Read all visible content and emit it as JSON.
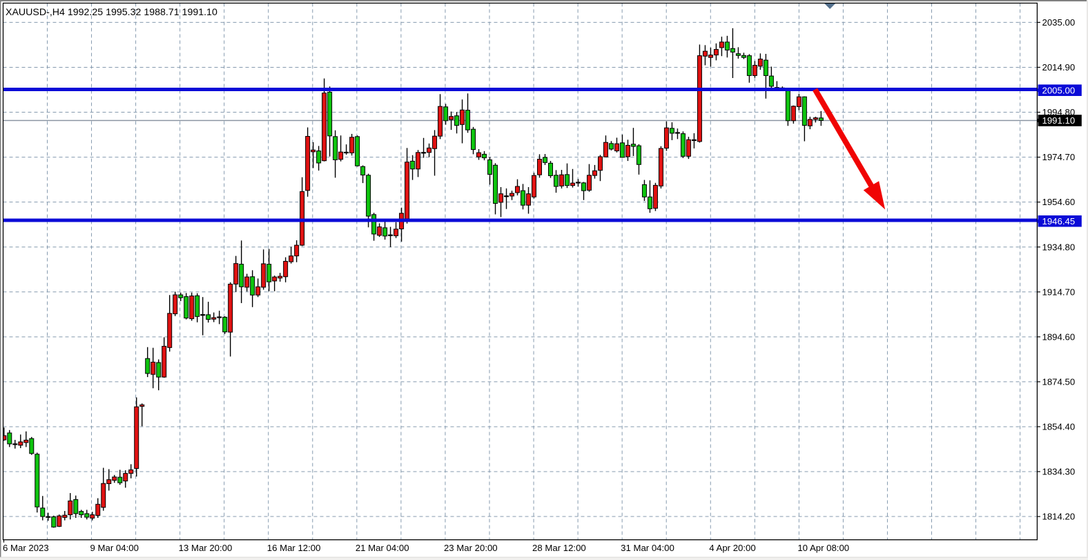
{
  "chart": {
    "title_text": "XAUUSD-,H4  1992.25 1995.32 1988.71 1991.10",
    "symbol": "XAUUSD-",
    "timeframe": "H4"
  },
  "chart_data": {
    "type": "candlestick",
    "title": "XAUUSD-,H4  1992.25 1995.32 1988.71 1991.10",
    "symbol": "XAUUSD-",
    "timeframe": "H4",
    "last_bar_ohlc": {
      "open": "1992.25",
      "high": "1995.32",
      "low": "1988.71",
      "close": "1991.10"
    },
    "legend_position": "none",
    "grid": "dashed",
    "colors": {
      "background": "#ffffff",
      "border": "#000000",
      "grid": "#8499ae",
      "bull_body": "#e11212",
      "bear_body": "#0fc40f",
      "outline": "#000000",
      "level_line": "#0b0bd7",
      "bid_line": "#8a95a2",
      "bid_tag_bg": "#000000",
      "tag_text": "#ffffff",
      "arrow": "#f00404",
      "shift_marker": "#54718e",
      "axis_text": "#000000",
      "window_trim": "#808080",
      "bottom_strip": "#f1f0ee"
    },
    "y_axis": {
      "side": "right",
      "tick_labels": [
        "2035.00",
        "2014.90",
        "1994.80",
        "1974.70",
        "1954.60",
        "1934.80",
        "1914.70",
        "1894.60",
        "1874.50",
        "1854.40",
        "1834.30",
        "1814.20"
      ],
      "top_price": 2035.0,
      "price_per_gridline": 20.1,
      "range_shown": [
        1805.5,
        2043.6
      ]
    },
    "x_axis": {
      "labels": [
        {
          "text": "6 Mar 2023",
          "grid_index": null
        },
        {
          "text": "9 Mar 04:00",
          "grid_index": 1
        },
        {
          "text": "13 Mar 20:00",
          "grid_index": 3
        },
        {
          "text": "16 Mar 12:00",
          "grid_index": 5
        },
        {
          "text": "21 Mar 04:00",
          "grid_index": 7
        },
        {
          "text": "23 Mar 20:00",
          "grid_index": 9
        },
        {
          "text": "28 Mar 12:00",
          "grid_index": 11
        },
        {
          "text": "31 Mar 04:00",
          "grid_index": 13
        },
        {
          "text": "4 Apr 20:00",
          "grid_index": 15
        },
        {
          "text": "10 Apr 08:00",
          "grid_index": 17
        }
      ],
      "gridline_count": 23,
      "bars_per_gridline": 8
    },
    "levels": [
      {
        "price": 2005.0,
        "label": "2005.00",
        "kind": "horizontal-line"
      },
      {
        "price": 1946.45,
        "label": "1946.45",
        "kind": "horizontal-line"
      }
    ],
    "bid": {
      "price": 1991.1,
      "label": "1991.10"
    },
    "arrow": {
      "from_bar": 146.9,
      "from_price": 2005.0,
      "to_bar": 159.6,
      "to_price": 1951.3
    },
    "shift_marker_bar": 149.6,
    "candles": [
      [
        1848.2,
        1853.7,
        1847.8,
        1850.1
      ],
      [
        1851.3,
        1852.6,
        1845.0,
        1846.4
      ],
      [
        1846.0,
        1848.2,
        1844.3,
        1846.5
      ],
      [
        1845.8,
        1850.6,
        1844.5,
        1847.3
      ],
      [
        1847.0,
        1852.0,
        1845.0,
        1848.1
      ],
      [
        1848.8,
        1849.5,
        1841.5,
        1842.1
      ],
      [
        1841.8,
        1842.5,
        1815.7,
        1818.2
      ],
      [
        1817.7,
        1823.1,
        1812.2,
        1813.9
      ],
      [
        1813.4,
        1815.6,
        1812.0,
        1814.0
      ],
      [
        1813.8,
        1814.3,
        1808.9,
        1809.2
      ],
      [
        1809.5,
        1814.8,
        1809.2,
        1814.2
      ],
      [
        1813.5,
        1816.4,
        1812.2,
        1814.5
      ],
      [
        1814.7,
        1824.4,
        1812.6,
        1820.9
      ],
      [
        1821.5,
        1823.3,
        1813.3,
        1815.2
      ],
      [
        1816.2,
        1816.9,
        1813.3,
        1814.7
      ],
      [
        1815.2,
        1816.9,
        1812.6,
        1813.6
      ],
      [
        1813.2,
        1816.0,
        1812.2,
        1814.7
      ],
      [
        1814.4,
        1822.1,
        1813.3,
        1819.4
      ],
      [
        1818.0,
        1835.7,
        1816.5,
        1828.7
      ],
      [
        1828.6,
        1835.1,
        1825.5,
        1830.4
      ],
      [
        1830.1,
        1832.5,
        1829.0,
        1831.6
      ],
      [
        1831.5,
        1834.8,
        1828.1,
        1829.0
      ],
      [
        1829.8,
        1834.6,
        1826.8,
        1833.2
      ],
      [
        1833.2,
        1837.3,
        1831.0,
        1834.8
      ],
      [
        1835.4,
        1867.2,
        1831.8,
        1863.0
      ],
      [
        1863.2,
        1864.5,
        1854.3,
        1863.9
      ],
      [
        1884.6,
        1889.7,
        1876.3,
        1877.9
      ],
      [
        1877.5,
        1889.4,
        1871.3,
        1883.0
      ],
      [
        1882.8,
        1884.2,
        1870.4,
        1876.3
      ],
      [
        1876.3,
        1894.1,
        1876.0,
        1890.1
      ],
      [
        1889.5,
        1913.0,
        1887.7,
        1904.8
      ],
      [
        1904.6,
        1914.5,
        1903.6,
        1913.1
      ],
      [
        1913.1,
        1914.1,
        1910.3,
        1911.8
      ],
      [
        1912.3,
        1913.9,
        1902.1,
        1902.7
      ],
      [
        1902.4,
        1914.1,
        1901.5,
        1912.6
      ],
      [
        1912.7,
        1913.8,
        1900.8,
        1903.4
      ],
      [
        1903.8,
        1912.1,
        1895.0,
        1904.4
      ],
      [
        1904.2,
        1910.0,
        1900.7,
        1902.1
      ],
      [
        1902.2,
        1905.2,
        1900.9,
        1902.9
      ],
      [
        1902.9,
        1906.0,
        1900.0,
        1903.2
      ],
      [
        1903.1,
        1903.5,
        1895.6,
        1896.5
      ],
      [
        1896.4,
        1918.7,
        1885.5,
        1917.9
      ],
      [
        1917.9,
        1930.5,
        1914.4,
        1927.1
      ],
      [
        1926.8,
        1937.4,
        1909.4,
        1916.7
      ],
      [
        1916.5,
        1922.5,
        1914.6,
        1921.1
      ],
      [
        1921.2,
        1924.1,
        1907.6,
        1913.0
      ],
      [
        1913.0,
        1920.4,
        1912.1,
        1916.7
      ],
      [
        1916.5,
        1933.4,
        1915.4,
        1927.0
      ],
      [
        1926.8,
        1933.6,
        1914.7,
        1918.9
      ],
      [
        1919.3,
        1921.7,
        1914.7,
        1921.1
      ],
      [
        1920.6,
        1922.9,
        1919.0,
        1921.4
      ],
      [
        1921.2,
        1929.9,
        1918.7,
        1928.1
      ],
      [
        1927.9,
        1934.6,
        1927.1,
        1930.5
      ],
      [
        1930.5,
        1937.5,
        1927.7,
        1935.3
      ],
      [
        1935.3,
        1965.7,
        1934.9,
        1959.3
      ],
      [
        1959.8,
        1988.0,
        1957.0,
        1984.0
      ],
      [
        1977.1,
        1981.4,
        1969.8,
        1977.9
      ],
      [
        1977.5,
        1979.7,
        1968.7,
        1972.1
      ],
      [
        1973.1,
        2009.9,
        1972.8,
        2003.4
      ],
      [
        2003.8,
        2006.3,
        1975.0,
        1984.2
      ],
      [
        1983.9,
        1986.7,
        1965.5,
        1973.5
      ],
      [
        1973.7,
        1984.4,
        1972.8,
        1977.0
      ],
      [
        1976.5,
        1980.4,
        1975.8,
        1977.0
      ],
      [
        1976.6,
        1985.1,
        1975.4,
        1983.6
      ],
      [
        1983.9,
        1984.4,
        1970.5,
        1970.8
      ],
      [
        1970.5,
        1971.0,
        1963.1,
        1966.7
      ],
      [
        1966.6,
        1967.3,
        1943.3,
        1948.3
      ],
      [
        1949.0,
        1949.8,
        1937.3,
        1940.3
      ],
      [
        1939.7,
        1945.1,
        1939.0,
        1943.5
      ],
      [
        1943.1,
        1945.7,
        1937.8,
        1939.4
      ],
      [
        1939.6,
        1943.5,
        1934.4,
        1939.9
      ],
      [
        1939.5,
        1945.6,
        1938.5,
        1942.5
      ],
      [
        1942.6,
        1952.1,
        1936.9,
        1949.6
      ],
      [
        1947.1,
        1978.8,
        1945.0,
        1972.5
      ],
      [
        1972.9,
        1975.6,
        1964.5,
        1969.4
      ],
      [
        1969.4,
        1977.9,
        1965.8,
        1976.8
      ],
      [
        1976.5,
        1983.3,
        1974.4,
        1976.8
      ],
      [
        1976.8,
        1980.8,
        1974.7,
        1978.8
      ],
      [
        1978.5,
        1986.8,
        1966.4,
        1984.1
      ],
      [
        1984.1,
        2002.9,
        1982.8,
        1997.4
      ],
      [
        1997.2,
        1998.5,
        1989.2,
        1991.0
      ],
      [
        1991.5,
        1995.1,
        1986.9,
        1992.9
      ],
      [
        1993.2,
        1994.9,
        1985.3,
        1988.9
      ],
      [
        1989.3,
        2000.5,
        1980.9,
        1995.8
      ],
      [
        1995.7,
        2003.2,
        1985.6,
        1986.9
      ],
      [
        1987.2,
        1988.2,
        1976.0,
        1978.1
      ],
      [
        1974.8,
        1978.3,
        1973.5,
        1976.7
      ],
      [
        1976.0,
        1977.4,
        1973.3,
        1974.4
      ],
      [
        1973.5,
        1974.8,
        1962.4,
        1967.0
      ],
      [
        1971.1,
        1972.0,
        1949.1,
        1954.0
      ],
      [
        1954.5,
        1961.3,
        1947.9,
        1958.3
      ],
      [
        1957.0,
        1960.7,
        1951.5,
        1957.4
      ],
      [
        1957.3,
        1959.7,
        1955.5,
        1958.5
      ],
      [
        1958.8,
        1964.8,
        1957.6,
        1961.6
      ],
      [
        1959.7,
        1962.7,
        1951.3,
        1953.2
      ],
      [
        1953.2,
        1961.3,
        1949.4,
        1958.3
      ],
      [
        1956.9,
        1967.7,
        1956.2,
        1966.5
      ],
      [
        1966.8,
        1976.0,
        1965.5,
        1973.8
      ],
      [
        1974.6,
        1976.1,
        1971.2,
        1972.3
      ],
      [
        1972.0,
        1973.0,
        1965.4,
        1966.4
      ],
      [
        1966.6,
        1968.9,
        1958.8,
        1961.6
      ],
      [
        1961.8,
        1969.0,
        1960.7,
        1966.8
      ],
      [
        1966.9,
        1971.9,
        1960.9,
        1962.0
      ],
      [
        1962.0,
        1969.4,
        1961.1,
        1963.1
      ],
      [
        1963.1,
        1964.9,
        1961.5,
        1963.5
      ],
      [
        1963.2,
        1963.6,
        1955.5,
        1959.7
      ],
      [
        1959.9,
        1971.6,
        1959.2,
        1966.6
      ],
      [
        1966.5,
        1971.2,
        1965.1,
        1968.6
      ],
      [
        1968.8,
        1975.7,
        1964.0,
        1974.9
      ],
      [
        1974.8,
        1984.4,
        1974.6,
        1981.3
      ],
      [
        1980.8,
        1981.9,
        1977.7,
        1978.3
      ],
      [
        1977.5,
        1983.4,
        1976.8,
        1980.7
      ],
      [
        1981.1,
        1984.8,
        1974.4,
        1974.6
      ],
      [
        1974.9,
        1982.5,
        1973.0,
        1980.0
      ],
      [
        1980.5,
        1987.8,
        1975.2,
        1979.5
      ],
      [
        1979.8,
        1980.5,
        1966.9,
        1971.4
      ],
      [
        1962.4,
        1964.5,
        1955.1,
        1956.9
      ],
      [
        1956.9,
        1964.3,
        1949.8,
        1951.6
      ],
      [
        1951.8,
        1963.2,
        1950.6,
        1962.1
      ],
      [
        1961.8,
        1979.6,
        1960.7,
        1978.6
      ],
      [
        1978.7,
        1990.7,
        1977.5,
        1987.8
      ],
      [
        1987.6,
        1990.3,
        1982.3,
        1985.4
      ],
      [
        1985.3,
        1987.5,
        1982.8,
        1985.8
      ],
      [
        1985.2,
        1986.2,
        1974.3,
        1975.1
      ],
      [
        1975.1,
        1983.8,
        1973.9,
        1982.5
      ],
      [
        1982.1,
        1985.4,
        1978.6,
        1982.5
      ],
      [
        1981.7,
        2025.1,
        1981.2,
        2020.1
      ],
      [
        2019.9,
        2024.8,
        2015.8,
        2022.1
      ],
      [
        2019.3,
        2023.7,
        2015.2,
        2020.4
      ],
      [
        2020.4,
        2025.6,
        2018.0,
        2022.9
      ],
      [
        2023.7,
        2028.6,
        2019.9,
        2026.2
      ],
      [
        2026.2,
        2029.0,
        2019.3,
        2022.6
      ],
      [
        2023.3,
        2032.4,
        2010.1,
        2021.7
      ],
      [
        2021.0,
        2023.9,
        2018.8,
        2020.2
      ],
      [
        2020.2,
        2021.4,
        2018.6,
        2019.3
      ],
      [
        2020.1,
        2020.8,
        2008.0,
        2011.2
      ],
      [
        2011.2,
        2017.7,
        2010.2,
        2015.8
      ],
      [
        2015.4,
        2021.1,
        2013.8,
        2018.6
      ],
      [
        2018.1,
        2020.9,
        2000.9,
        2011.2
      ],
      [
        2011.0,
        2015.2,
        2005.1,
        2006.4
      ],
      [
        2005.5,
        2008.7,
        2004.8,
        2005.9
      ],
      [
        2005.6,
        2006.3,
        2004.9,
        2005.4
      ],
      [
        2004.7,
        2005.0,
        1988.7,
        1991.0
      ],
      [
        1991.0,
        1997.8,
        1989.7,
        1997.5
      ],
      [
        1997.3,
        2003.0,
        1995.7,
        2001.7
      ],
      [
        2001.7,
        2001.9,
        1981.8,
        1988.9
      ],
      [
        1988.7,
        1992.8,
        1987.2,
        1991.6
      ],
      [
        1991.6,
        1992.8,
        1990.2,
        1992.3
      ],
      [
        1992.25,
        1995.32,
        1988.71,
        1991.1
      ]
    ]
  }
}
